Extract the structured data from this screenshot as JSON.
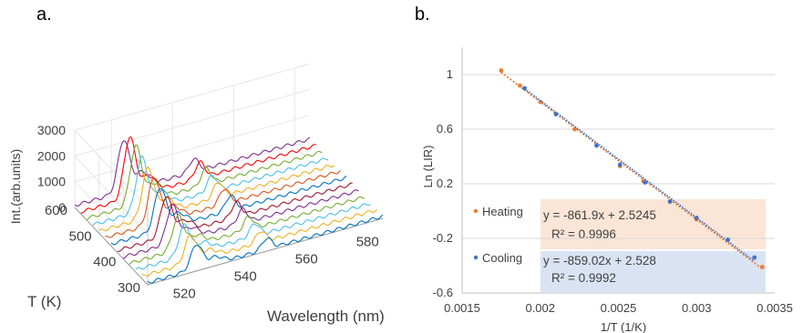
{
  "panel_a": {
    "label": "a."
  },
  "panel_b": {
    "label": "b."
  },
  "chart_data": [
    {
      "type": "line",
      "title": "",
      "zlabel": "Int.(arb.units)",
      "xlabel": "Wavelength (nm)",
      "ylabel": "T (K)",
      "z_ticks": [
        "0",
        "1000",
        "2000",
        "3000"
      ],
      "x_ticks": [
        "520",
        "540",
        "560",
        "580"
      ],
      "y_ticks": [
        "300",
        "400",
        "500",
        "600"
      ],
      "zlim": [
        0,
        3000
      ],
      "xlim": [
        508,
        585
      ],
      "ylim": [
        300,
        600
      ],
      "grid": true,
      "peak_wavelengths_nm": [
        524,
        547
      ],
      "series": [
        {
          "color": "#7e2f8e",
          "temperature": 600,
          "peak_intensity": 2000
        },
        {
          "color": "#ff0000",
          "temperature": 575,
          "peak_intensity": 2350
        },
        {
          "color": "#77ac30",
          "temperature": 550,
          "peak_intensity": 2250
        },
        {
          "color": "#4dbeee",
          "temperature": 525,
          "peak_intensity": 2050
        },
        {
          "color": "#edb120",
          "temperature": 500,
          "peak_intensity": 1900
        },
        {
          "color": "#d95319",
          "temperature": 475,
          "peak_intensity": 1800
        },
        {
          "color": "#0072bd",
          "temperature": 450,
          "peak_intensity": 1650
        },
        {
          "color": "#a2142f",
          "temperature": 425,
          "peak_intensity": 1550
        },
        {
          "color": "#7e2f8e",
          "temperature": 400,
          "peak_intensity": 1450
        },
        {
          "color": "#77ac30",
          "temperature": 375,
          "peak_intensity": 1300
        },
        {
          "color": "#4dbeee",
          "temperature": 350,
          "peak_intensity": 1200
        },
        {
          "color": "#edb120",
          "temperature": 325,
          "peak_intensity": 1050
        },
        {
          "color": "#0072bd",
          "temperature": 300,
          "peak_intensity": 950
        }
      ]
    },
    {
      "type": "scatter",
      "title": "",
      "xlabel": "1/T (1/K)",
      "ylabel": "Ln (LIR)",
      "xlim": [
        0.0015,
        0.0035
      ],
      "ylim": [
        -0.6,
        1.2
      ],
      "x_ticks": [
        "0.0015",
        "0.002",
        "0.0025",
        "0.003",
        "0.0035"
      ],
      "y_ticks": [
        "-0.6",
        "-0.2",
        "0.2",
        "0.6",
        "1"
      ],
      "grid": true,
      "series": [
        {
          "name": "Heating",
          "color": "#ed7d31",
          "fit_equation": "y = -861.9x + 2.5245",
          "r_squared": "R² = 0.9996",
          "fit": {
            "slope": -861.9,
            "intercept": 2.5245
          },
          "x": [
            0.00175,
            0.00187,
            0.002,
            0.00222,
            0.00251,
            0.00266,
            0.00283,
            0.003,
            0.00342
          ],
          "y": [
            1.03,
            0.92,
            0.8,
            0.6,
            0.33,
            0.22,
            0.07,
            -0.06,
            -0.41
          ]
        },
        {
          "name": "Cooling",
          "color": "#4472c4",
          "fit_equation": "y = -859.02x + 2.528",
          "r_squared": "R² = 0.9992",
          "fit": {
            "slope": -859.02,
            "intercept": 2.528
          },
          "x": [
            0.0019,
            0.0021,
            0.00236,
            0.00251,
            0.00267,
            0.00283,
            0.003,
            0.0032,
            0.00337
          ],
          "y": [
            0.9,
            0.71,
            0.48,
            0.34,
            0.21,
            0.07,
            -0.05,
            -0.21,
            -0.34
          ]
        }
      ]
    }
  ]
}
